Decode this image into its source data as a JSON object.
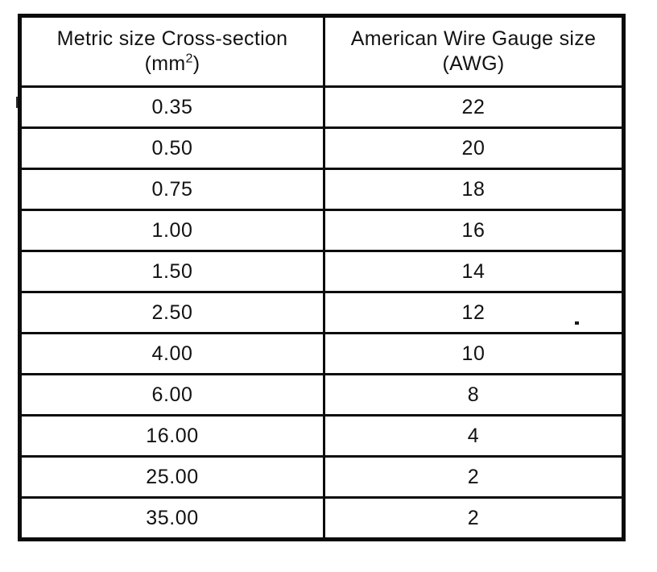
{
  "table": {
    "columns": [
      {
        "line1": "Metric size Cross-section",
        "unit_pre": "(mm",
        "unit_sup": "2",
        "unit_post": ")"
      },
      {
        "line1": "American Wire Gauge size",
        "line2": "(AWG)"
      }
    ],
    "rows": [
      [
        "0.35",
        "22"
      ],
      [
        "0.50",
        "20"
      ],
      [
        "0.75",
        "18"
      ],
      [
        "1.00",
        "16"
      ],
      [
        "1.50",
        "14"
      ],
      [
        "2.50",
        "12"
      ],
      [
        "4.00",
        "10"
      ],
      [
        "6.00",
        "8"
      ],
      [
        "16.00",
        "4"
      ],
      [
        "25.00",
        "2"
      ],
      [
        "35.00",
        "2"
      ]
    ]
  }
}
